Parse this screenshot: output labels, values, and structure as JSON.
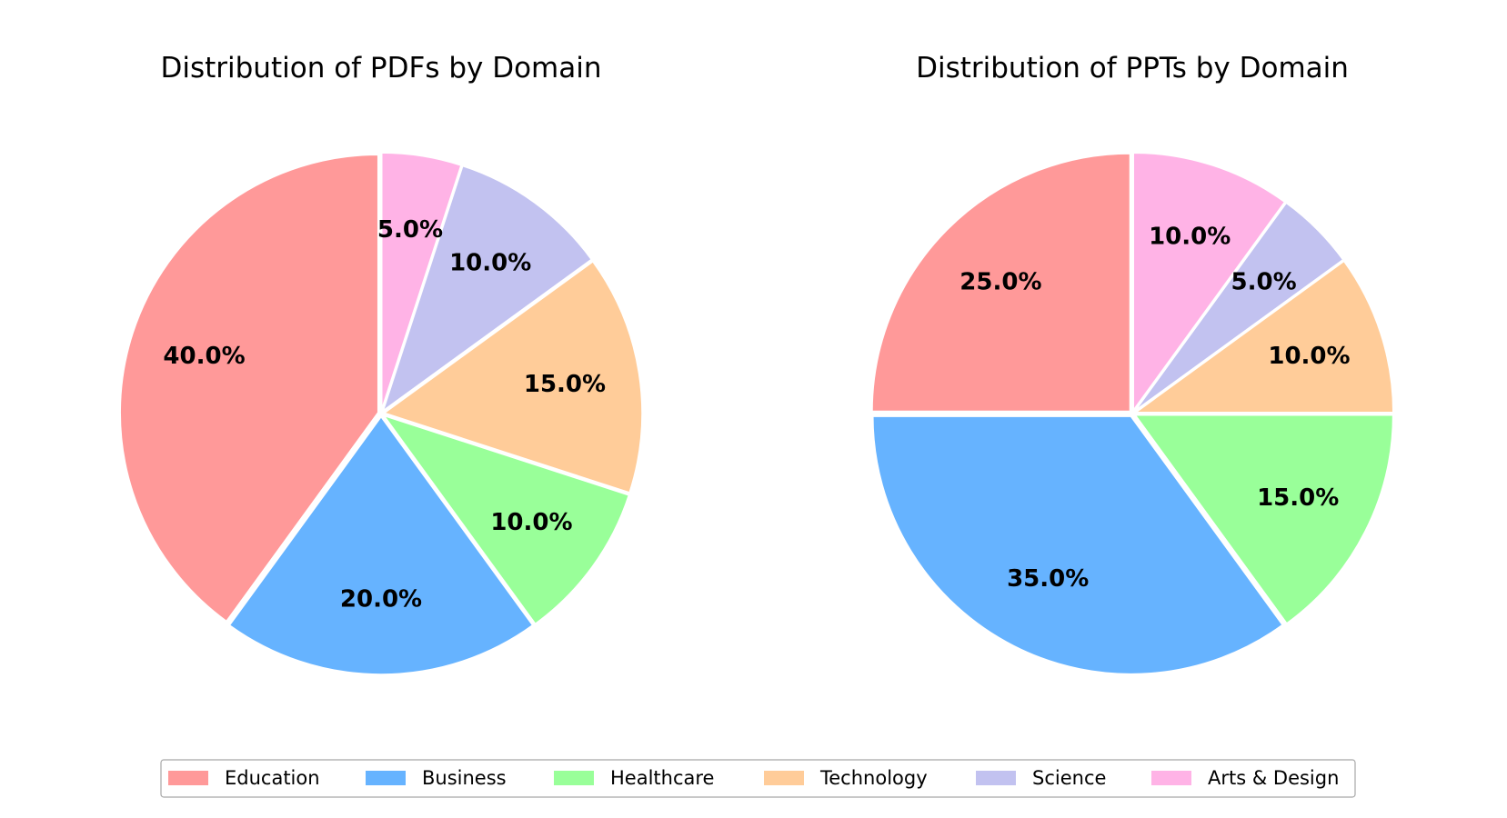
{
  "colors": {
    "Education": "#ff9999",
    "Business": "#66b3ff",
    "Healthcare": "#99ff99",
    "Technology": "#ffcc99",
    "Science": "#c2c2f0",
    "Arts & Design": "#ffb3e6"
  },
  "legend": [
    "Education",
    "Business",
    "Healthcare",
    "Technology",
    "Science",
    "Arts & Design"
  ],
  "chart_data": [
    {
      "type": "pie",
      "title": "Distribution of PDFs by Domain",
      "categories": [
        "Education",
        "Business",
        "Healthcare",
        "Technology",
        "Science",
        "Arts & Design"
      ],
      "values": [
        40.0,
        20.0,
        10.0,
        15.0,
        10.0,
        5.0
      ],
      "labels": [
        "40.0%",
        "20.0%",
        "10.0%",
        "15.0%",
        "10.0%",
        "5.0%"
      ],
      "start_angle": 90,
      "direction": "counterclockwise",
      "legend_position": "bottom"
    },
    {
      "type": "pie",
      "title": "Distribution of PPTs by Domain",
      "categories": [
        "Education",
        "Business",
        "Healthcare",
        "Technology",
        "Science",
        "Arts & Design"
      ],
      "values": [
        25.0,
        35.0,
        15.0,
        10.0,
        5.0,
        10.0
      ],
      "labels": [
        "25.0%",
        "35.0%",
        "15.0%",
        "10.0%",
        "5.0%",
        "10.0%"
      ],
      "start_angle": 90,
      "direction": "counterclockwise",
      "legend_position": "bottom"
    }
  ]
}
